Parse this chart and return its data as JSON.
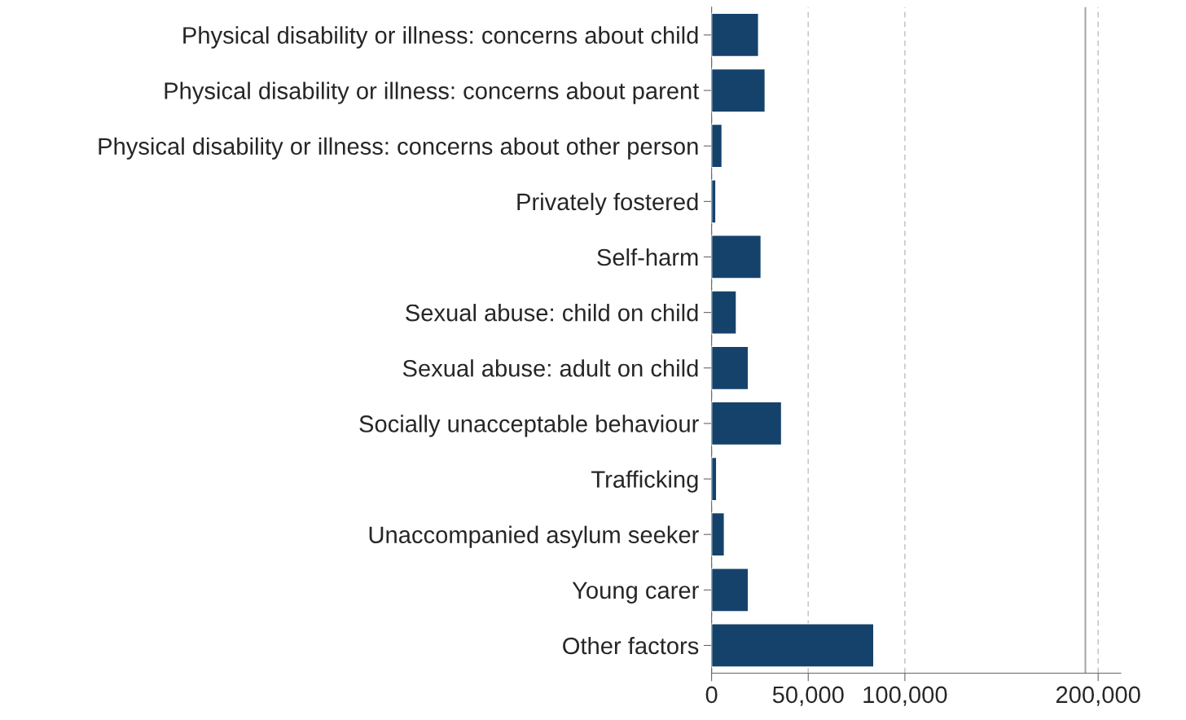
{
  "chart_data": {
    "type": "bar",
    "orientation": "horizontal",
    "categories": [
      "Physical disability or illness: concerns about child",
      "Physical disability or illness: concerns about parent",
      "Physical disability or illness: concerns about other person",
      "Privately fostered",
      "Self-harm",
      "Sexual abuse: child on child",
      "Sexual abuse: adult on child",
      "Socially unacceptable behaviour",
      "Trafficking",
      "Unaccompanied asylum seeker",
      "Young carer",
      "Other factors"
    ],
    "values": [
      24300,
      27700,
      5400,
      2200,
      25600,
      12800,
      19000,
      36200,
      2600,
      6600,
      19000,
      83900
    ],
    "color": "#14426b",
    "xlim": [
      0,
      211700
    ],
    "xticks": [
      {
        "value": 0,
        "label": "0"
      },
      {
        "value": 50000,
        "label": "50,000"
      },
      {
        "value": 100000,
        "label": "100,000"
      },
      {
        "value": 200000,
        "label": "200,000"
      }
    ],
    "grid": "x",
    "ref_lines": [
      {
        "axis": "x",
        "value": 193400,
        "color": "#a6a6a6",
        "line_style": "solid"
      }
    ]
  }
}
